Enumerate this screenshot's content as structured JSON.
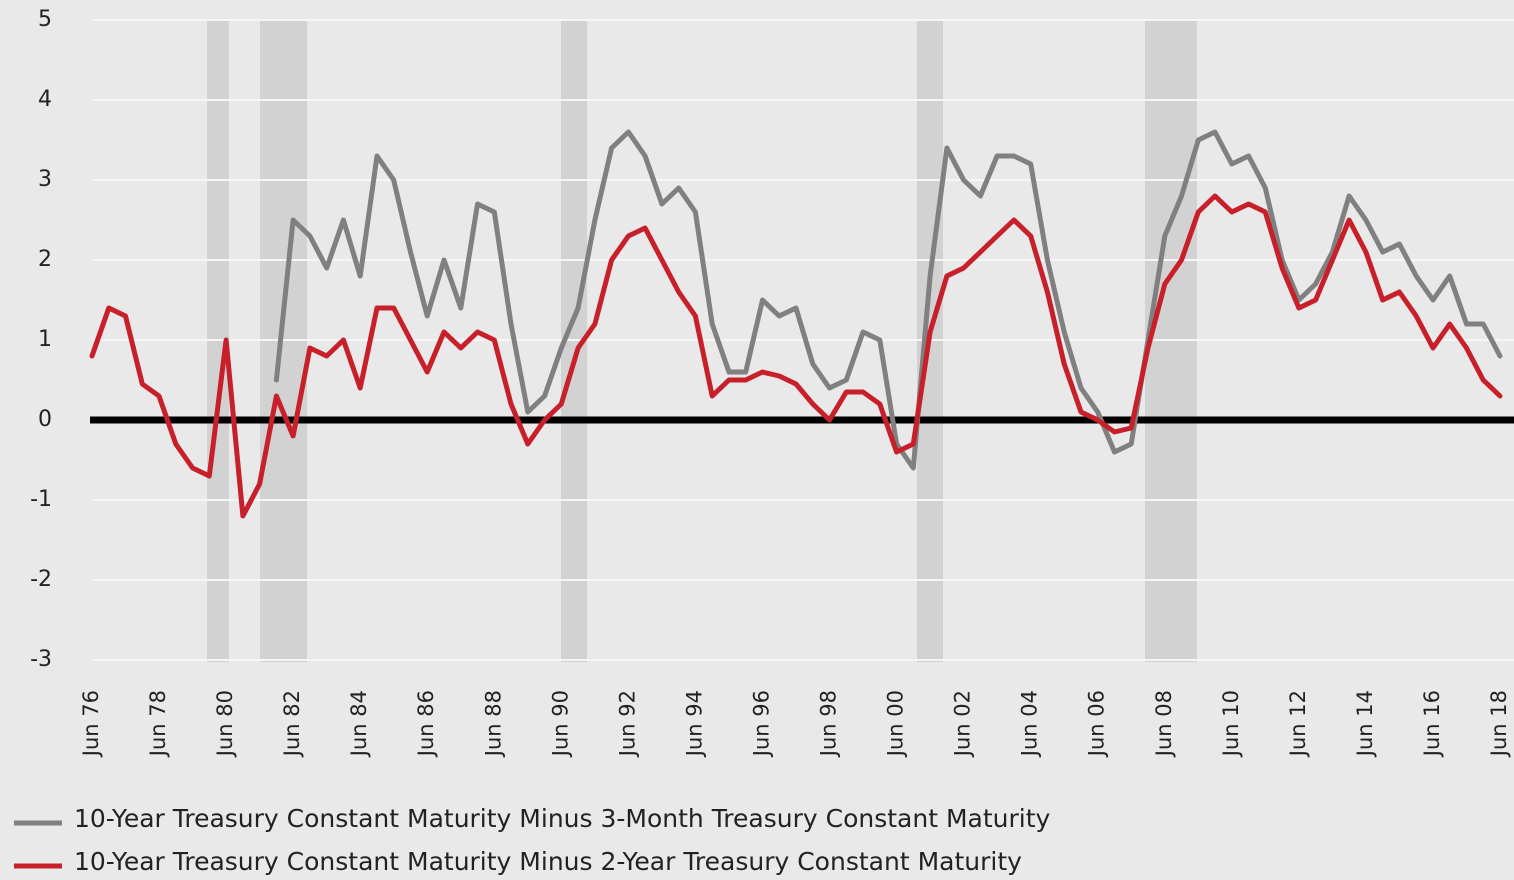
{
  "chart_data": {
    "type": "line",
    "categories": [
      "Jun 76",
      null,
      null,
      null,
      "Jun 78",
      null,
      null,
      null,
      "Jun 80",
      null,
      null,
      null,
      "Jun 82",
      null,
      null,
      null,
      "Jun 84",
      null,
      null,
      null,
      "Jun 86",
      null,
      null,
      null,
      "Jun 88",
      null,
      null,
      null,
      "Jun 90",
      null,
      null,
      null,
      "Jun 92",
      null,
      null,
      null,
      "Jun 94",
      null,
      null,
      null,
      "Jun 96",
      null,
      null,
      null,
      "Jun 98",
      null,
      null,
      null,
      "Jun 00",
      null,
      null,
      null,
      "Jun 02",
      null,
      null,
      null,
      "Jun 04",
      null,
      null,
      null,
      "Jun 06",
      null,
      null,
      null,
      "Jun 08",
      null,
      null,
      null,
      "Jun 10",
      null,
      null,
      null,
      "Jun 12",
      null,
      null,
      null,
      "Jun 14",
      null,
      null,
      null,
      "Jun 16",
      null,
      null,
      null,
      "Jun 18"
    ],
    "series": [
      {
        "name": "10-Year Treasury Constant Maturity Minus 3-Month Treasury Constant Maturity",
        "color": "#808080",
        "values": [
          null,
          null,
          null,
          null,
          null,
          null,
          null,
          null,
          null,
          null,
          null,
          0.5,
          2.5,
          2.3,
          1.9,
          2.5,
          1.8,
          3.3,
          3.0,
          2.1,
          1.3,
          2.0,
          1.4,
          2.7,
          2.6,
          1.2,
          0.1,
          0.3,
          0.9,
          1.4,
          2.5,
          3.4,
          3.6,
          3.3,
          2.7,
          2.9,
          2.6,
          1.2,
          0.6,
          0.6,
          1.5,
          1.3,
          1.4,
          0.7,
          0.4,
          0.5,
          1.1,
          1.0,
          -0.3,
          -0.6,
          1.8,
          3.4,
          3.0,
          2.8,
          3.3,
          3.3,
          3.2,
          2.0,
          1.1,
          0.4,
          0.1,
          -0.4,
          -0.3,
          1.0,
          2.3,
          2.8,
          3.5,
          3.6,
          3.2,
          3.3,
          2.9,
          2.0,
          1.5,
          1.7,
          2.1,
          2.8,
          2.5,
          2.1,
          2.2,
          1.8,
          1.5,
          1.8,
          1.2,
          1.2,
          0.8
        ]
      },
      {
        "name": "10-Year Treasury Constant Maturity Minus 2-Year Treasury Constant Maturity",
        "color": "#c8202b",
        "values": [
          0.8,
          1.4,
          1.3,
          0.45,
          0.3,
          -0.3,
          -0.6,
          -0.7,
          1.0,
          -1.2,
          -0.8,
          0.3,
          -0.2,
          0.9,
          0.8,
          1.0,
          0.4,
          1.4,
          1.4,
          1.0,
          0.6,
          1.1,
          0.9,
          1.1,
          1.0,
          0.2,
          -0.3,
          0.0,
          0.2,
          0.9,
          1.2,
          2.0,
          2.3,
          2.4,
          2.0,
          1.6,
          1.3,
          0.3,
          0.5,
          0.5,
          0.6,
          0.55,
          0.45,
          0.2,
          0.0,
          0.35,
          0.35,
          0.2,
          -0.4,
          -0.3,
          1.1,
          1.8,
          1.9,
          2.1,
          2.3,
          2.5,
          2.3,
          1.6,
          0.7,
          0.1,
          0.0,
          -0.15,
          -0.1,
          0.9,
          1.7,
          2.0,
          2.6,
          2.8,
          2.6,
          2.7,
          2.6,
          1.9,
          1.4,
          1.5,
          2.0,
          2.5,
          2.1,
          1.5,
          1.6,
          1.3,
          0.9,
          1.2,
          0.9,
          0.5,
          0.3
        ]
      }
    ],
    "ylim": [
      -3,
      5
    ],
    "yticks": [
      -3,
      -2,
      -1,
      0,
      1,
      2,
      3,
      4,
      5
    ],
    "grid": true
  }
}
